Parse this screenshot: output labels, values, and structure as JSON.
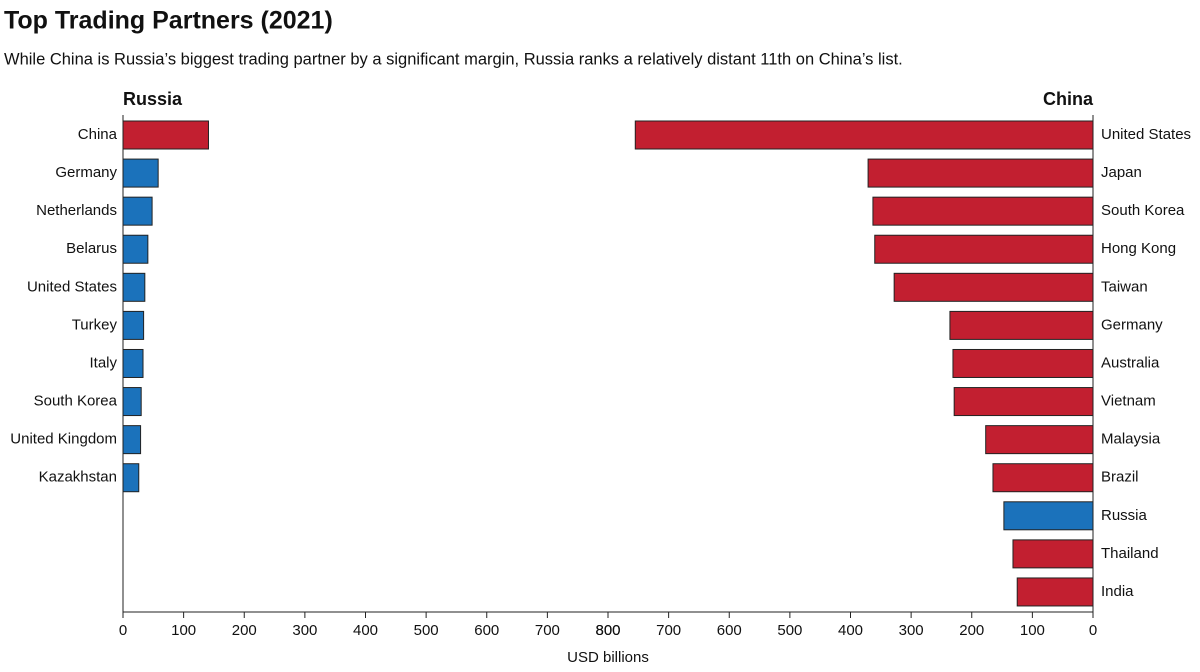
{
  "title": "Top Trading Partners (2021)",
  "subtitle": "While China is Russia’s biggest trading partner by a significant margin, Russia ranks a relatively distant 11th on China’s list.",
  "xlabel": "USD billions",
  "chart_data": [
    {
      "type": "bar",
      "orientation": "horizontal",
      "title": "Russia",
      "categories": [
        "China",
        "Germany",
        "Netherlands",
        "Belarus",
        "United States",
        "Turkey",
        "Italy",
        "South Korea",
        "United Kingdom",
        "Kazakhstan"
      ],
      "values": [
        141,
        58,
        48,
        41,
        36,
        34,
        33,
        30,
        29,
        26
      ],
      "colors": [
        "#c21f30",
        "#1b72bb",
        "#1b72bb",
        "#1b72bb",
        "#1b72bb",
        "#1b72bb",
        "#1b72bb",
        "#1b72bb",
        "#1b72bb",
        "#1b72bb"
      ],
      "xlim": [
        0,
        800
      ],
      "xticks": [
        0,
        100,
        200,
        300,
        400,
        500,
        600,
        700,
        800
      ],
      "label_side": "left"
    },
    {
      "type": "bar",
      "orientation": "horizontal",
      "title": "China",
      "categories": [
        "United States",
        "Japan",
        "South Korea",
        "Hong Kong",
        "Taiwan",
        "Germany",
        "Australia",
        "Vietnam",
        "Malaysia",
        "Brazil",
        "Russia",
        "Thailand",
        "India"
      ],
      "values": [
        755,
        371,
        363,
        360,
        328,
        236,
        231,
        229,
        177,
        165,
        147,
        132,
        125
      ],
      "colors": [
        "#c21f30",
        "#c21f30",
        "#c21f30",
        "#c21f30",
        "#c21f30",
        "#c21f30",
        "#c21f30",
        "#c21f30",
        "#c21f30",
        "#c21f30",
        "#1b72bb",
        "#c21f30",
        "#c21f30"
      ],
      "xlim": [
        800,
        0
      ],
      "xticks": [
        800,
        700,
        600,
        500,
        400,
        300,
        200,
        100,
        0
      ],
      "label_side": "right"
    }
  ]
}
